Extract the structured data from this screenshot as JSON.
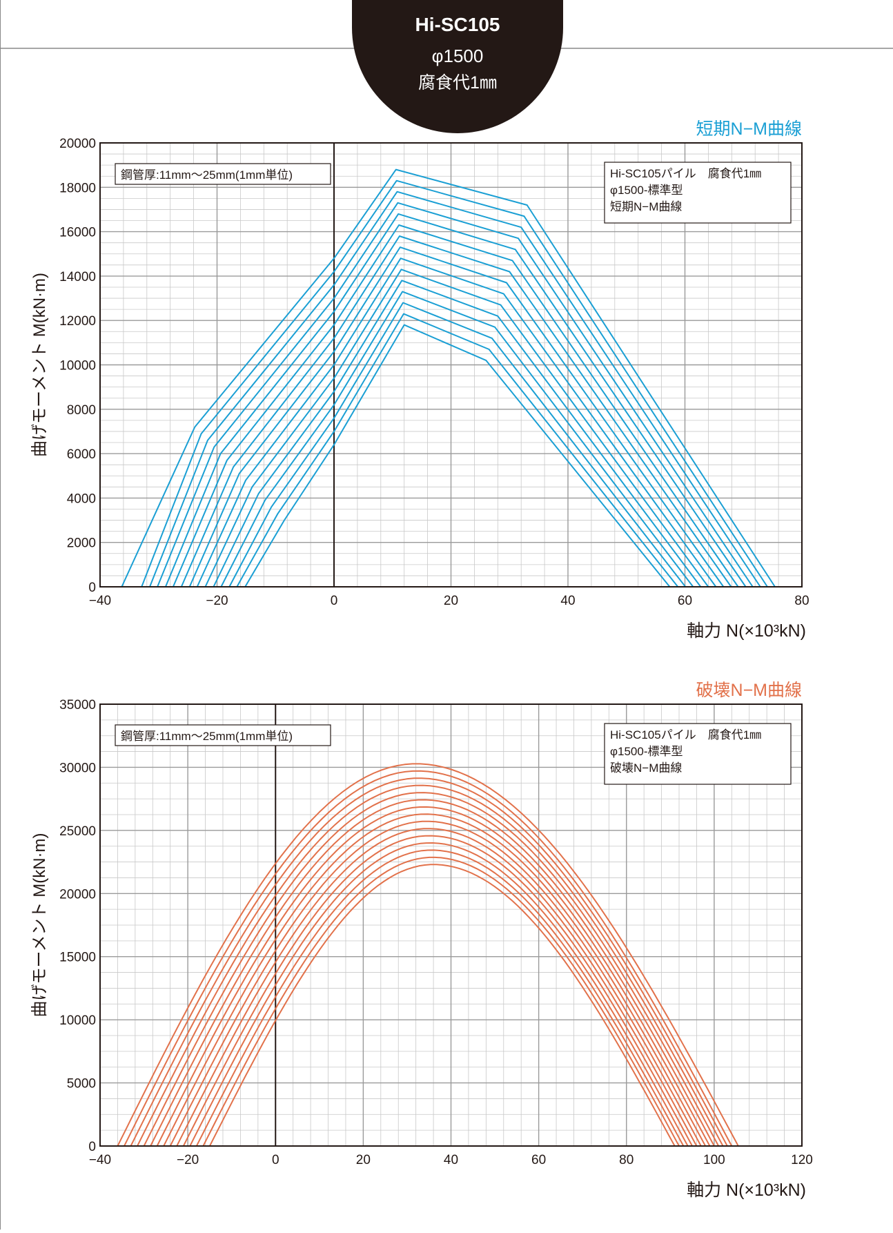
{
  "header": {
    "model": "Hi-SC105",
    "diameter": "φ1500",
    "corrosion": "腐食代1㎜"
  },
  "colors": {
    "short_term": "#1a9fd4",
    "failure": "#e2714a",
    "header_bg": "#231815"
  },
  "chart_data": [
    {
      "type": "line",
      "title": "短期N−M曲線",
      "xlabel": "軸力 N(×10³kN)",
      "ylabel": "曲げモーメント M(kN·m)",
      "xlim": [
        -40,
        80
      ],
      "ylim": [
        0,
        20000
      ],
      "xticks": [
        -40,
        -20,
        0,
        20,
        40,
        60,
        80
      ],
      "yticks": [
        0,
        2000,
        4000,
        6000,
        8000,
        10000,
        12000,
        14000,
        16000,
        18000,
        20000
      ],
      "grid": true,
      "note_left": "鋼管厚:11mm〜25mm(1mm単位)",
      "note_right": [
        "Hi-SC105パイル　腐食代1㎜",
        "φ1500-標準型",
        "短期N−M曲線"
      ],
      "series": [
        {
          "values": [
            [
              -15.2,
              0
            ],
            [
              -8.5,
              3000
            ],
            [
              0,
              6400
            ],
            [
              12,
              11800
            ],
            [
              26,
              10200
            ],
            [
              57.4,
              0
            ]
          ]
        },
        {
          "values": [
            [
              -16.6,
              0
            ],
            [
              -9.6,
              3300
            ],
            [
              0,
              7000
            ],
            [
              11.9,
              12300
            ],
            [
              26.5,
              10700
            ],
            [
              58.8,
              0
            ]
          ]
        },
        {
          "values": [
            [
              -17.9,
              0
            ],
            [
              -10.7,
              3600
            ],
            [
              0,
              7600
            ],
            [
              11.8,
              12800
            ],
            [
              27,
              11200
            ],
            [
              60.1,
              0
            ]
          ]
        },
        {
          "values": [
            [
              -19.3,
              0
            ],
            [
              -11.8,
              3900
            ],
            [
              0,
              8200
            ],
            [
              11.7,
              13300
            ],
            [
              27.5,
              11700
            ],
            [
              61.4,
              0
            ]
          ]
        },
        {
          "values": [
            [
              -20.6,
              0
            ],
            [
              -12.9,
              4200
            ],
            [
              0,
              8800
            ],
            [
              11.6,
              13800
            ],
            [
              28,
              12200
            ],
            [
              62.7,
              0
            ]
          ]
        },
        {
          "values": [
            [
              -22,
              0
            ],
            [
              -14,
              4500
            ],
            [
              0,
              9400
            ],
            [
              11.5,
              14300
            ],
            [
              28.5,
              12700
            ],
            [
              64,
              0
            ]
          ]
        },
        {
          "values": [
            [
              -23.4,
              0
            ],
            [
              -15.1,
              4800
            ],
            [
              0,
              10000
            ],
            [
              11.4,
              14800
            ],
            [
              29,
              13200
            ],
            [
              65.3,
              0
            ]
          ]
        },
        {
          "values": [
            [
              -24.7,
              0
            ],
            [
              -16.2,
              5100
            ],
            [
              0,
              10600
            ],
            [
              11.3,
              15300
            ],
            [
              29.5,
              13700
            ],
            [
              66.6,
              0
            ]
          ]
        },
        {
          "values": [
            [
              -26.1,
              0
            ],
            [
              -17.2,
              5400
            ],
            [
              0,
              11200
            ],
            [
              11.2,
              15800
            ],
            [
              30,
              14200
            ],
            [
              67.9,
              0
            ]
          ]
        },
        {
          "values": [
            [
              -27.5,
              0
            ],
            [
              -18.3,
              5700
            ],
            [
              0,
              11800
            ],
            [
              11.1,
              16300
            ],
            [
              30.5,
              14700
            ],
            [
              69.1,
              0
            ]
          ]
        },
        {
          "values": [
            [
              -28.8,
              0
            ],
            [
              -19.4,
              6000
            ],
            [
              0,
              12400
            ],
            [
              11,
              16800
            ],
            [
              31,
              15200
            ],
            [
              70.4,
              0
            ]
          ]
        },
        {
          "values": [
            [
              -30.2,
              0
            ],
            [
              -20.5,
              6300
            ],
            [
              0,
              13000
            ],
            [
              10.9,
              17300
            ],
            [
              31.5,
              15700
            ],
            [
              71.6,
              0
            ]
          ]
        },
        {
          "values": [
            [
              -31.5,
              0
            ],
            [
              -21.6,
              6600
            ],
            [
              0,
              13600
            ],
            [
              10.8,
              17800
            ],
            [
              32,
              16200
            ],
            [
              72.9,
              0
            ]
          ]
        },
        {
          "values": [
            [
              -32.9,
              0
            ],
            [
              -22.7,
              6900
            ],
            [
              0,
              14200
            ],
            [
              10.7,
              18300
            ],
            [
              32.5,
              16700
            ],
            [
              74.1,
              0
            ]
          ]
        },
        {
          "values": [
            [
              -36.3,
              0
            ],
            [
              -23.8,
              7200
            ],
            [
              0,
              14800
            ],
            [
              10.6,
              18800
            ],
            [
              33,
              17200
            ],
            [
              75.4,
              0
            ]
          ]
        }
      ]
    },
    {
      "type": "line",
      "title": "破壊N−M曲線",
      "xlabel": "軸力 N(×10³kN)",
      "ylabel": "曲げモーメント M(kN·m)",
      "xlim": [
        -40,
        120
      ],
      "ylim": [
        0,
        35000
      ],
      "xticks": [
        -40,
        -20,
        0,
        20,
        40,
        60,
        80,
        100,
        120
      ],
      "yticks": [
        0,
        5000,
        10000,
        15000,
        20000,
        25000,
        30000,
        35000
      ],
      "grid": true,
      "note_left": "鋼管厚:11mm〜25mm(1mm単位)",
      "note_right": [
        "Hi-SC105パイル　腐食代1㎜",
        "φ1500-標準型",
        "破壊N−M曲線"
      ],
      "series": [
        {
          "peak_n": 36,
          "peak_m": 22300,
          "n_min": -15,
          "n_max": 91
        },
        {
          "peak_n": 35.8,
          "peak_m": 22870,
          "n_min": -16.5,
          "n_max": 92
        },
        {
          "peak_n": 35.5,
          "peak_m": 23440,
          "n_min": -18,
          "n_max": 93
        },
        {
          "peak_n": 35.2,
          "peak_m": 24010,
          "n_min": -19.5,
          "n_max": 94
        },
        {
          "peak_n": 35,
          "peak_m": 24580,
          "n_min": -21,
          "n_max": 95
        },
        {
          "peak_n": 34.7,
          "peak_m": 25150,
          "n_min": -22.5,
          "n_max": 96
        },
        {
          "peak_n": 34.4,
          "peak_m": 25720,
          "n_min": -24,
          "n_max": 97
        },
        {
          "peak_n": 34.1,
          "peak_m": 26290,
          "n_min": -25.5,
          "n_max": 98
        },
        {
          "peak_n": 33.8,
          "peak_m": 26860,
          "n_min": -27,
          "n_max": 99
        },
        {
          "peak_n": 33.5,
          "peak_m": 27430,
          "n_min": -28.5,
          "n_max": 100
        },
        {
          "peak_n": 33.2,
          "peak_m": 28000,
          "n_min": -30,
          "n_max": 101
        },
        {
          "peak_n": 32.9,
          "peak_m": 28570,
          "n_min": -31.5,
          "n_max": 102
        },
        {
          "peak_n": 32.6,
          "peak_m": 29140,
          "n_min": -33,
          "n_max": 103
        },
        {
          "peak_n": 32.3,
          "peak_m": 29710,
          "n_min": -34.5,
          "n_max": 104
        },
        {
          "peak_n": 32,
          "peak_m": 30280,
          "n_min": -36,
          "n_max": 105.5
        }
      ]
    }
  ]
}
